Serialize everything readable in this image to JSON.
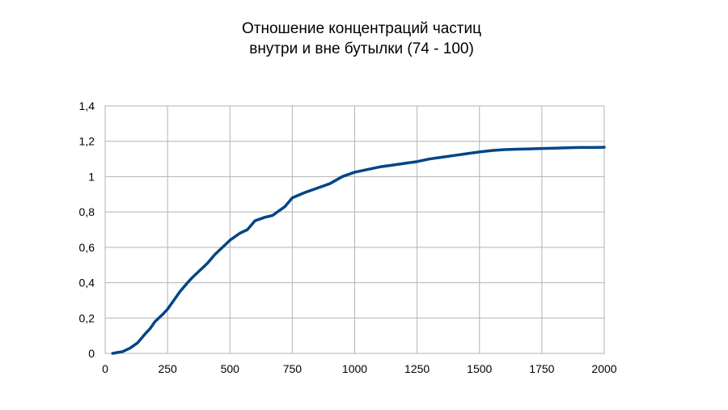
{
  "chart_data": {
    "type": "line",
    "title_lines": [
      "Отношение концентраций частиц",
      "внутри и вне бутылки (74 - 100)"
    ],
    "xlabel": "",
    "ylabel": "",
    "xlim": [
      0,
      2000
    ],
    "ylim": [
      0,
      1.4
    ],
    "x_ticks": [
      0,
      250,
      500,
      750,
      1000,
      1250,
      1500,
      1750,
      2000
    ],
    "x_tick_labels": [
      "0",
      "250",
      "500",
      "750",
      "1000",
      "1250",
      "1500",
      "1750",
      "2000"
    ],
    "y_ticks": [
      0,
      0.2,
      0.4,
      0.6,
      0.8,
      1.0,
      1.2,
      1.4
    ],
    "y_tick_labels": [
      "0",
      "0,2",
      "0,4",
      "0,6",
      "0,8",
      "1",
      "1,2",
      "1,4"
    ],
    "grid": true,
    "legend": "none",
    "series": [
      {
        "color": "#004586",
        "x": [
          30,
          50,
          70,
          100,
          130,
          160,
          180,
          200,
          230,
          250,
          280,
          300,
          330,
          350,
          380,
          410,
          440,
          470,
          500,
          540,
          570,
          600,
          640,
          670,
          700,
          720,
          750,
          800,
          850,
          900,
          950,
          1000,
          1050,
          1100,
          1150,
          1200,
          1250,
          1300,
          1350,
          1400,
          1450,
          1500,
          1550,
          1600,
          1650,
          1700,
          1750,
          1800,
          1850,
          1900,
          1950,
          2000
        ],
        "y": [
          0.0,
          0.005,
          0.01,
          0.03,
          0.06,
          0.11,
          0.14,
          0.18,
          0.22,
          0.25,
          0.31,
          0.35,
          0.4,
          0.43,
          0.47,
          0.51,
          0.56,
          0.6,
          0.64,
          0.68,
          0.7,
          0.75,
          0.77,
          0.78,
          0.81,
          0.83,
          0.88,
          0.91,
          0.935,
          0.96,
          1.0,
          1.025,
          1.04,
          1.055,
          1.065,
          1.075,
          1.085,
          1.1,
          1.11,
          1.12,
          1.13,
          1.14,
          1.148,
          1.153,
          1.155,
          1.157,
          1.159,
          1.161,
          1.163,
          1.165,
          1.165,
          1.166
        ]
      }
    ]
  }
}
